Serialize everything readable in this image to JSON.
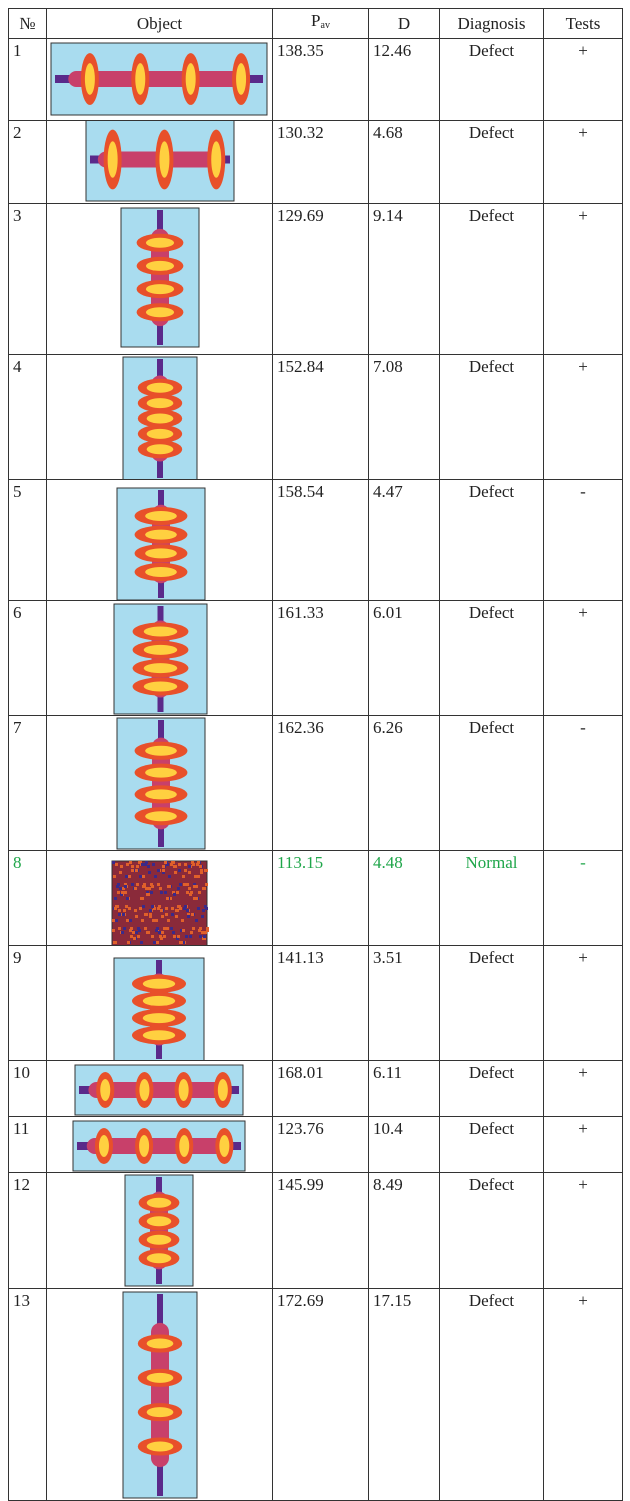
{
  "table": {
    "header": [
      "№",
      "Object",
      {
        "main": "P",
        "sub": "av"
      },
      "D",
      "Diagnosis",
      "Tests"
    ],
    "rows": [
      {
        "no": "1",
        "p": "138.35",
        "d": "12.46",
        "diagnosis": "Defect",
        "tests": "+"
      },
      {
        "no": "2",
        "p": "130.32",
        "d": "4.68",
        "diagnosis": "Defect",
        "tests": "+"
      },
      {
        "no": "3",
        "p": "129.69",
        "d": "9.14",
        "diagnosis": "Defect",
        "tests": "+"
      },
      {
        "no": "4",
        "p": "152.84",
        "d": "7.08",
        "diagnosis": "Defect",
        "tests": "+"
      },
      {
        "no": "5",
        "p": "158.54",
        "d": "4.47",
        "diagnosis": "Defect",
        "tests": "-"
      },
      {
        "no": "6",
        "p": "161.33",
        "d": "6.01",
        "diagnosis": "Defect",
        "tests": "+"
      },
      {
        "no": "7",
        "p": "162.36",
        "d": "6.26",
        "diagnosis": "Defect",
        "tests": "-"
      },
      {
        "no": "8",
        "p": "113.15",
        "d": "4.48",
        "diagnosis": "Normal",
        "tests": "-",
        "color": "#1fa64a"
      },
      {
        "no": "9",
        "p": "141.13",
        "d": "3.51",
        "diagnosis": "Defect",
        "tests": "+"
      },
      {
        "no": "10",
        "p": "168.01",
        "d": "6.11",
        "diagnosis": "Defect",
        "tests": "+"
      },
      {
        "no": "11",
        "p": "123.76",
        "d": "10.4",
        "diagnosis": "Defect",
        "tests": "+"
      },
      {
        "no": "12",
        "p": "145.99",
        "d": "8.49",
        "diagnosis": "Defect",
        "tests": "+"
      },
      {
        "no": "13",
        "p": "172.69",
        "d": "17.15",
        "diagnosis": "Defect",
        "tests": "+"
      }
    ]
  }
}
